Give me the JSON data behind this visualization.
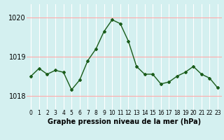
{
  "hours": [
    0,
    1,
    2,
    3,
    4,
    5,
    6,
    7,
    8,
    9,
    10,
    11,
    12,
    13,
    14,
    15,
    16,
    17,
    18,
    19,
    20,
    21,
    22,
    23
  ],
  "pressure": [
    1018.5,
    1018.7,
    1018.55,
    1018.65,
    1018.6,
    1018.15,
    1018.4,
    1018.9,
    1019.2,
    1019.65,
    1019.95,
    1019.85,
    1019.4,
    1018.75,
    1018.55,
    1018.55,
    1018.3,
    1018.35,
    1018.5,
    1018.6,
    1018.75,
    1018.55,
    1018.45,
    1018.2
  ],
  "line_color": "#1a5c1a",
  "marker": "D",
  "marker_size": 2,
  "bg_color": "#d4f0f0",
  "grid_color_v": "#ffffff",
  "grid_color_h": "#ffaaaa",
  "xlabel": "Graphe pression niveau de la mer (hPa)",
  "xlabel_fontsize": 7,
  "ylabel_ticks": [
    1018,
    1019,
    1020
  ],
  "ylim": [
    1017.65,
    1020.35
  ],
  "xlim": [
    -0.5,
    23.5
  ],
  "ytick_fontsize": 7,
  "xtick_fontsize": 5.5
}
